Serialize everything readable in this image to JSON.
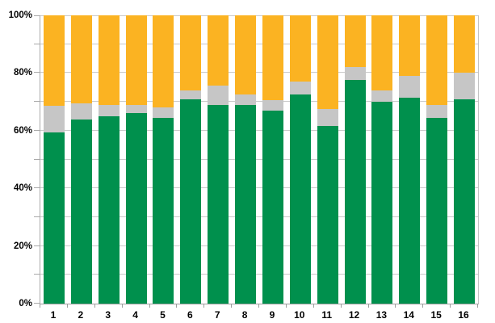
{
  "chart_data": {
    "type": "bar",
    "stacked": true,
    "title": "",
    "xlabel": "",
    "ylabel": "",
    "legend": false,
    "grid": true,
    "ylim": [
      0,
      100
    ],
    "gridline_values": [
      0,
      10,
      20,
      30,
      40,
      50,
      60,
      70,
      80,
      90,
      100
    ],
    "y_axis_labels": [
      {
        "value": 0,
        "label": "0%"
      },
      {
        "value": 20,
        "label": "20%"
      },
      {
        "value": 40,
        "label": "40%"
      },
      {
        "value": 60,
        "label": "60%"
      },
      {
        "value": 80,
        "label": "80%"
      },
      {
        "value": 100,
        "label": "100%"
      }
    ],
    "categories": [
      "1",
      "2",
      "3",
      "4",
      "5",
      "6",
      "7",
      "8",
      "9",
      "10",
      "11",
      "12",
      "13",
      "14",
      "15",
      "16"
    ],
    "series": [
      {
        "name": "green",
        "color": "#00904D",
        "values": [
          59.5,
          64,
          65,
          66,
          64.5,
          71,
          69,
          69,
          67,
          72.5,
          61.5,
          77.5,
          70,
          71.5,
          64.5,
          71
        ]
      },
      {
        "name": "gray",
        "color": "#C6C6C6",
        "values": [
          9,
          5.5,
          4,
          3,
          3.5,
          3,
          6.5,
          3.5,
          3.5,
          4.5,
          6,
          4.5,
          4,
          7.5,
          4.5,
          9
        ]
      },
      {
        "name": "yellow",
        "color": "#FBB322",
        "values": [
          31.5,
          30.5,
          31,
          31,
          32,
          26,
          24.5,
          27.5,
          29.5,
          23,
          32.5,
          18,
          26,
          21,
          31,
          20
        ]
      }
    ]
  },
  "colors": {
    "background": "#FFFFFF",
    "gridline": "#C9C9C9",
    "axis": "#9E9E9E",
    "label_text": "#000000"
  }
}
